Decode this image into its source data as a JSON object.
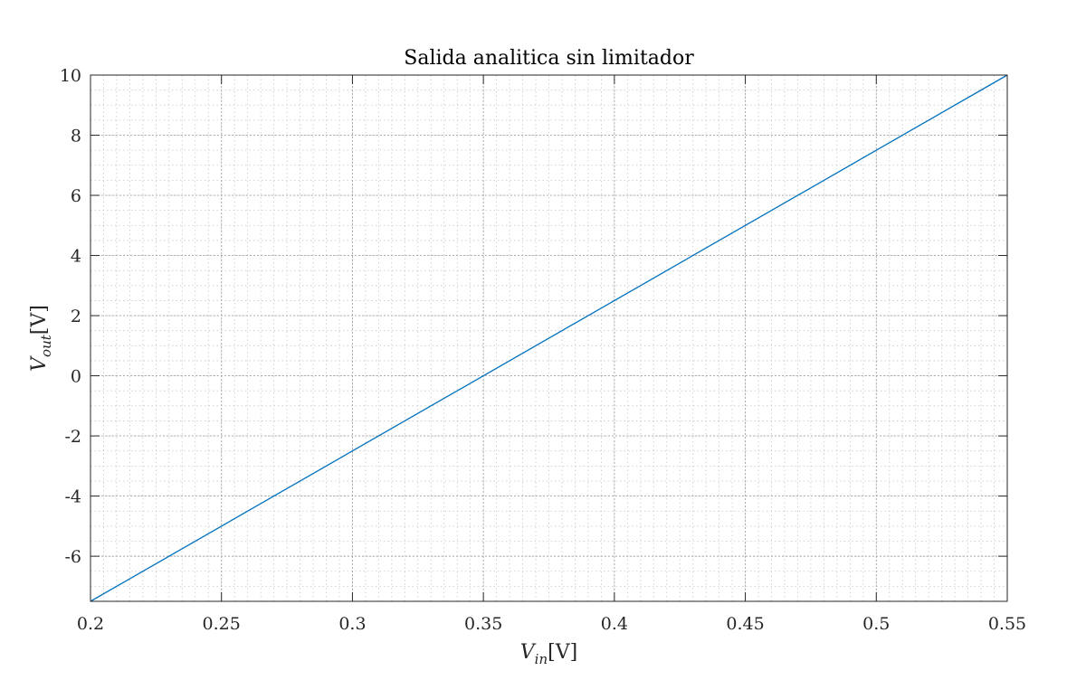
{
  "chart_data": {
    "type": "line",
    "title": "Salida analitica sin limitador",
    "xlabel": {
      "main": "V",
      "sub": "in",
      "unit": "[V]"
    },
    "ylabel": {
      "main": "V",
      "sub": "out",
      "unit": "[V]"
    },
    "xlim": [
      0.2,
      0.55
    ],
    "ylim": [
      -7.5,
      10
    ],
    "xticks": [
      0.2,
      0.25,
      0.3,
      0.35,
      0.4,
      0.45,
      0.5,
      0.55
    ],
    "xtick_labels": [
      "0.2",
      "0.25",
      "0.3",
      "0.35",
      "0.4",
      "0.45",
      "0.5",
      "0.55"
    ],
    "yticks": [
      -6,
      -4,
      -2,
      0,
      2,
      4,
      6,
      8,
      10
    ],
    "ytick_labels": [
      "-6",
      "-4",
      "-2",
      "0",
      "2",
      "4",
      "6",
      "8",
      "10"
    ],
    "grid": {
      "major": true,
      "minor": true
    },
    "series": [
      {
        "x": [
          0.2,
          0.55
        ],
        "y": [
          -7.5,
          10
        ]
      }
    ],
    "colors": {
      "line": "#0072BD",
      "axes": "#262626",
      "grid": "#c8c8c8"
    }
  }
}
